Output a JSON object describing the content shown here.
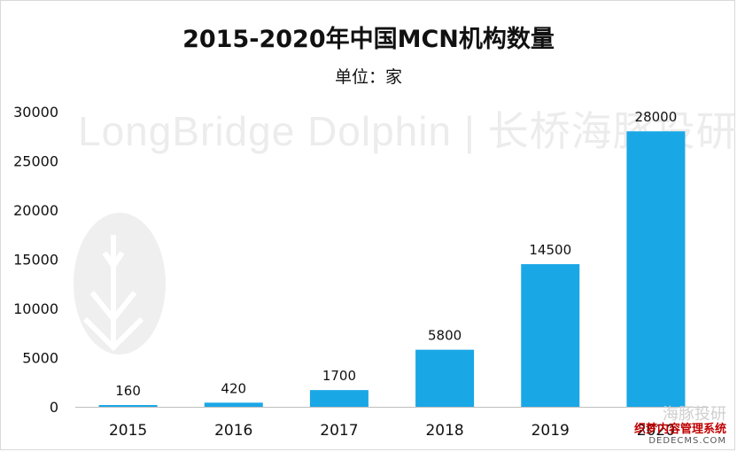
{
  "chart_data": {
    "type": "bar",
    "title": "2015-2020年中国MCN机构数量",
    "subtitle": "单位：家",
    "categories": [
      "2015",
      "2016",
      "2017",
      "2018",
      "2019",
      "2020"
    ],
    "values": [
      160,
      420,
      1700,
      5800,
      14500,
      28000
    ],
    "data_labels": [
      "160",
      "420",
      "1700",
      "5800",
      "14500",
      "28000"
    ],
    "y_ticks": [
      0,
      5000,
      10000,
      15000,
      20000,
      25000,
      30000
    ],
    "y_tick_labels": [
      "0",
      "5000",
      "10000",
      "15000",
      "20000",
      "25000",
      "30000"
    ],
    "ylim": [
      0,
      30000
    ],
    "grid": false,
    "legend": "none",
    "bar_color": "#1aa7e6"
  },
  "watermark": {
    "text": "LongBridge Dolphin | 长桥海豚投研",
    "corner_line1": "海豚投研",
    "corner_line2": "织梦内容管理系统",
    "corner_line3": "DEDECMS.COM"
  },
  "colors": {
    "axis": "#bfbfbf",
    "text": "#111111",
    "watermark": "#ececec"
  }
}
